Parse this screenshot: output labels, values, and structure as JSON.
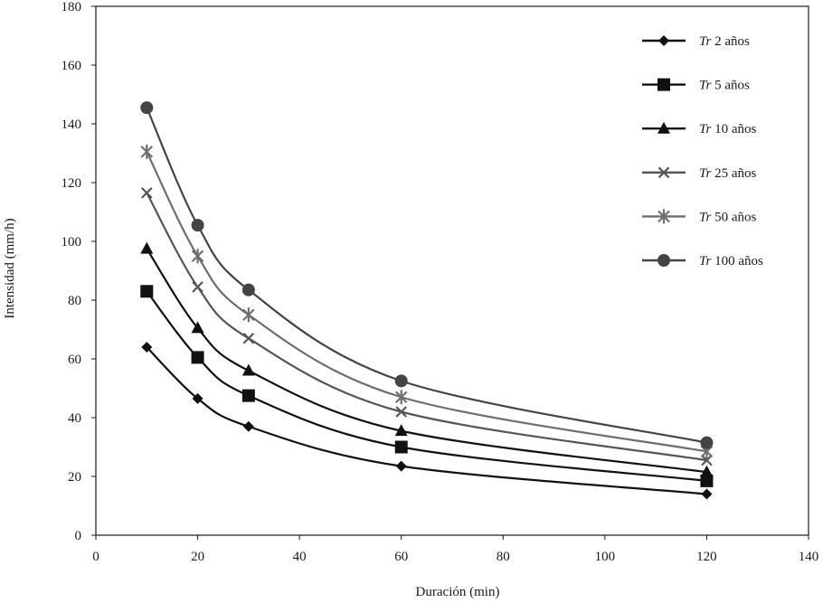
{
  "chart_data": {
    "type": "line",
    "title": "",
    "xlabel": "Duración (min)",
    "ylabel": "Intensidad (mm/h)",
    "xlim": [
      0,
      140
    ],
    "ylim": [
      0,
      180
    ],
    "xticks": [
      0,
      20,
      40,
      60,
      80,
      100,
      120,
      140
    ],
    "yticks": [
      0,
      20,
      40,
      60,
      80,
      100,
      120,
      140,
      160,
      180
    ],
    "grid": false,
    "legend_position": "top-right",
    "x": [
      10,
      20,
      30,
      60,
      120
    ],
    "series": [
      {
        "name_prefix": "Tr",
        "name_suffix": "2 años",
        "marker": "diamond",
        "color": "#111111",
        "values": [
          64,
          46.5,
          37,
          23.5,
          14
        ]
      },
      {
        "name_prefix": "Tr",
        "name_suffix": "5 años",
        "marker": "square",
        "color": "#111111",
        "values": [
          83,
          60.5,
          47.5,
          30,
          18.5
        ]
      },
      {
        "name_prefix": "Tr",
        "name_suffix": "10 años",
        "marker": "triangle",
        "color": "#111111",
        "values": [
          97.5,
          70.5,
          56,
          35.5,
          21.5
        ]
      },
      {
        "name_prefix": "Tr",
        "name_suffix": "25 años",
        "marker": "x",
        "color": "#555555",
        "values": [
          116.5,
          84.5,
          67,
          42,
          25.5
        ]
      },
      {
        "name_prefix": "Tr",
        "name_suffix": "50 años",
        "marker": "star",
        "color": "#6e6e6e",
        "values": [
          130.5,
          95,
          75,
          47,
          28.5
        ]
      },
      {
        "name_prefix": "Tr",
        "name_suffix": "100 años",
        "marker": "circle",
        "color": "#444444",
        "values": [
          145.5,
          105.5,
          83.5,
          52.5,
          31.5
        ]
      }
    ]
  }
}
